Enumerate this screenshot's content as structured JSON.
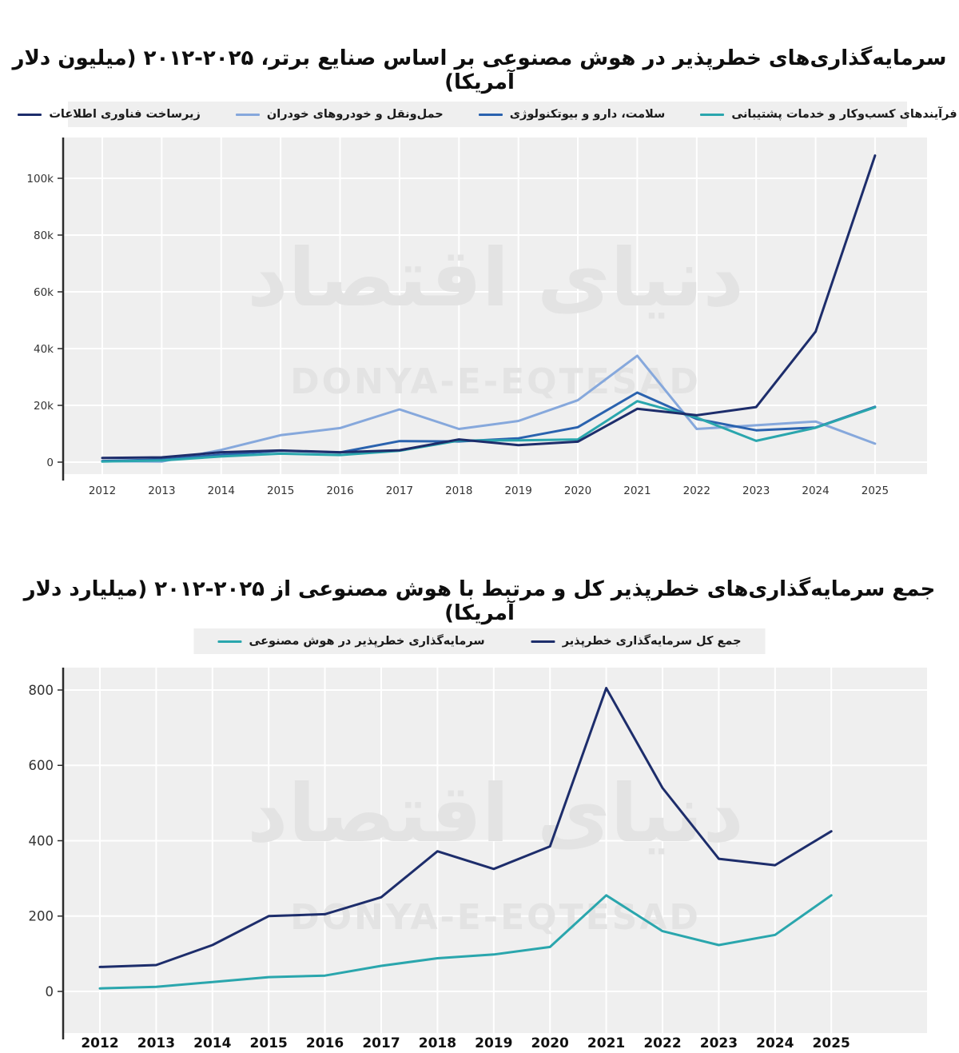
{
  "page": {
    "background": "#ffffff",
    "watermark": {
      "fa": "دنیای اقتصاد",
      "en": "DONYA-E-EQTESAD"
    }
  },
  "chart_data": [
    {
      "type": "line",
      "title": "سرمایه‌گذاری‌های خطرپذیر در هوش مصنوعی بر اساس صنایع برتر، ۲۰۲۵-۲۰۱۲ (میلیون دلار آمریکا)",
      "unit": "میلیون دلار آمریکا",
      "legend_position": "top",
      "grid": true,
      "plot_bg": "#efefef",
      "grid_color": "#ffffff",
      "axis_color": "#2b2b2b",
      "tick_label_color": "#333333",
      "x_labels": [
        "2012",
        "2013",
        "2014",
        "2015",
        "2016",
        "2017",
        "2018",
        "2019",
        "2020",
        "2021",
        "2022",
        "2023",
        "2024",
        "2025"
      ],
      "y_ticks": {
        "values": [
          0,
          20000,
          40000,
          60000,
          80000,
          100000
        ],
        "labels": [
          "0",
          "20k",
          "40k",
          "60k",
          "80k",
          "100k"
        ]
      },
      "ylim": [
        0,
        114000
      ],
      "series": [
        {
          "name": "فرآیندهای کسب‌وکار و خدمات پشتیبانی",
          "color": "#2aa6ad",
          "z": 3,
          "values": [
            200,
            600,
            2000,
            3000,
            2500,
            4000,
            7600,
            7700,
            8000,
            21500,
            15700,
            7500,
            12100,
            19300
          ]
        },
        {
          "name": "سلامت، دارو و بیوتکنولوژی",
          "color": "#2a62ae",
          "z": 2,
          "values": [
            400,
            900,
            2600,
            4000,
            3400,
            7400,
            7300,
            8400,
            12300,
            24500,
            15200,
            11200,
            12200,
            19500
          ]
        },
        {
          "name": "حمل‌ونقل و خودروهای خودران",
          "color": "#86a8dc",
          "z": 1,
          "values": [
            300,
            200,
            4300,
            9500,
            12000,
            18600,
            11700,
            14500,
            21800,
            37500,
            11700,
            13000,
            14300,
            6500
          ]
        },
        {
          "name": "زیرساخت فناوری اطلاعات",
          "color": "#1d2d6b",
          "z": 4,
          "values": [
            1500,
            1700,
            3500,
            4100,
            3500,
            4200,
            8000,
            6000,
            7200,
            18800,
            16500,
            19400,
            46000,
            108000
          ]
        }
      ],
      "watermark": {
        "fa": "دنیای اقتصاد",
        "en": "DONYA-E-EQTESAD"
      }
    },
    {
      "type": "line",
      "title": "جمع سرمایه‌گذاری‌های خطرپذیر کل و مرتبط با هوش مصنوعی از  ۲۰۲۵-۲۰۱۲ (میلیارد دلار آمریکا)",
      "unit": "میلیارد دلار آمریکا",
      "legend_position": "top",
      "grid": true,
      "plot_bg": "#efefef",
      "grid_color": "#ffffff",
      "axis_color": "#2b2b2b",
      "tick_label_color": "#333333",
      "x_labels": [
        "2012",
        "2013",
        "2014",
        "2015",
        "2016",
        "2017",
        "2018",
        "2019",
        "2020",
        "2021",
        "2022",
        "2023",
        "2024",
        "2025"
      ],
      "y_ticks": {
        "values": [
          0,
          200,
          400,
          600,
          800
        ],
        "labels": [
          "0",
          "200",
          "400",
          "600",
          "800"
        ]
      },
      "ylim": [
        0,
        860
      ],
      "series": [
        {
          "name": "جمع کل سرمایه‌گذاری خطرپذیر",
          "color": "#1d2d6b",
          "z": 2,
          "values": [
            65,
            70,
            123,
            200,
            205,
            250,
            372,
            325,
            385,
            805,
            540,
            352,
            335,
            425
          ]
        },
        {
          "name": "سرمایه‌گذاری خطرپذیر در هوش مصنوعی",
          "color": "#2aa6ad",
          "z": 1,
          "values": [
            8,
            12,
            25,
            38,
            42,
            68,
            88,
            98,
            118,
            255,
            160,
            123,
            150,
            255
          ]
        }
      ],
      "watermark": {
        "fa": "دنیای اقتصاد",
        "en": "DONYA-E-EQTESAD"
      }
    }
  ]
}
